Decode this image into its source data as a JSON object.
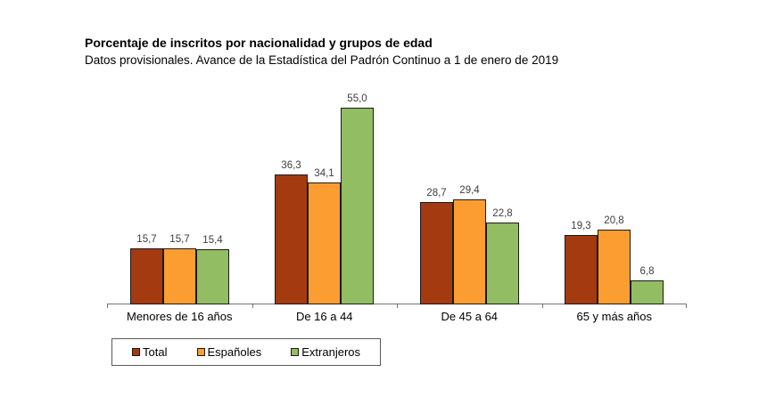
{
  "header": {
    "title": "Porcentaje de inscritos por nacionalidad y grupos de edad",
    "subtitle": "Datos provisionales. Avance de la Estadística del Padrón Continuo a 1 de enero de 2019"
  },
  "chart_data": {
    "type": "bar",
    "title": "Porcentaje de inscritos por nacionalidad y grupos de edad",
    "subtitle": "Datos provisionales. Avance de la Estadística del Padrón Continuo a 1 de enero de 2019",
    "categories": [
      "Menores de 16 años",
      "De 16 a 44",
      "De 45 a 64",
      "65 y más años"
    ],
    "series": [
      {
        "name": "Total",
        "color": "#A43A10",
        "values": [
          15.7,
          36.3,
          28.7,
          19.3
        ],
        "labels": [
          "15,7",
          "36,3",
          "28,7",
          "19,3"
        ]
      },
      {
        "name": "Españoles",
        "color": "#FB9D30",
        "values": [
          15.7,
          34.1,
          29.4,
          20.8
        ],
        "labels": [
          "15,7",
          "34,1",
          "29,4",
          "20,8"
        ]
      },
      {
        "name": "Extranjeros",
        "color": "#92BD62",
        "values": [
          15.4,
          55.0,
          22.8,
          6.8
        ],
        "labels": [
          "15,4",
          "55,0",
          "22,8",
          "6,8"
        ]
      }
    ],
    "ylim": [
      0,
      55
    ],
    "ylabel": "",
    "xlabel": "",
    "decimal_separator": ",",
    "grid": false,
    "value_labels_shown": true,
    "legend_position": "bottom-left",
    "bar_edge_color": "#1A1A1A",
    "axis_color": "#737373"
  }
}
